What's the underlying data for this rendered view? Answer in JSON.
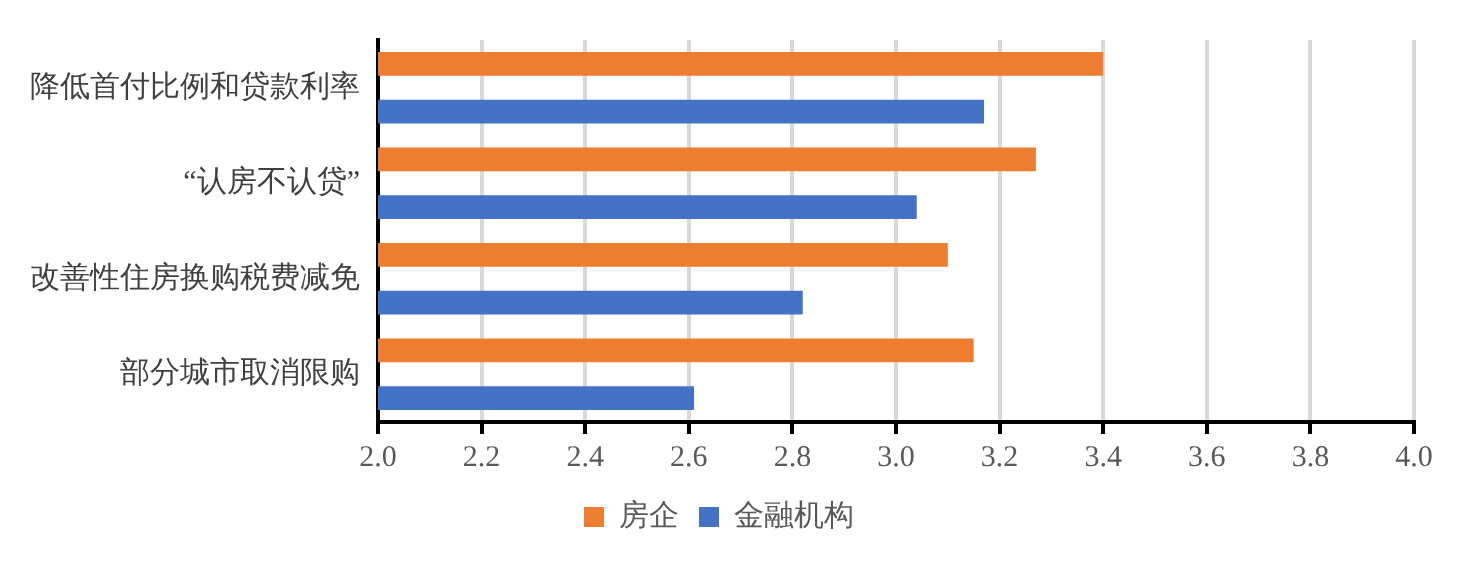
{
  "chart_data": {
    "type": "bar",
    "orientation": "horizontal",
    "categories": [
      "降低首付比例和贷款利率",
      "“认房不认贷”",
      "改善性住房换购税费减免",
      "部分城市取消限购"
    ],
    "series": [
      {
        "name": "房企",
        "color": "#ed7d31",
        "values": [
          3.4,
          3.27,
          3.1,
          3.15
        ]
      },
      {
        "name": "金融机构",
        "color": "#4472c4",
        "values": [
          3.17,
          3.04,
          2.82,
          2.61
        ]
      }
    ],
    "xlim": [
      2.0,
      4.0
    ],
    "xticks": [
      {
        "value": 2.0,
        "label": "2.0"
      },
      {
        "value": 2.2,
        "label": "2.2"
      },
      {
        "value": 2.4,
        "label": "2.4"
      },
      {
        "value": 2.6,
        "label": "2.6"
      },
      {
        "value": 2.8,
        "label": "2.8"
      },
      {
        "value": 3.0,
        "label": "3.0"
      },
      {
        "value": 3.2,
        "label": "3.2"
      },
      {
        "value": 3.4,
        "label": "3.4"
      },
      {
        "value": 3.6,
        "label": "3.6"
      },
      {
        "value": 3.8,
        "label": "3.8"
      },
      {
        "value": 4.0,
        "label": "4.0"
      }
    ],
    "grid": "x",
    "legend": "bottom"
  }
}
